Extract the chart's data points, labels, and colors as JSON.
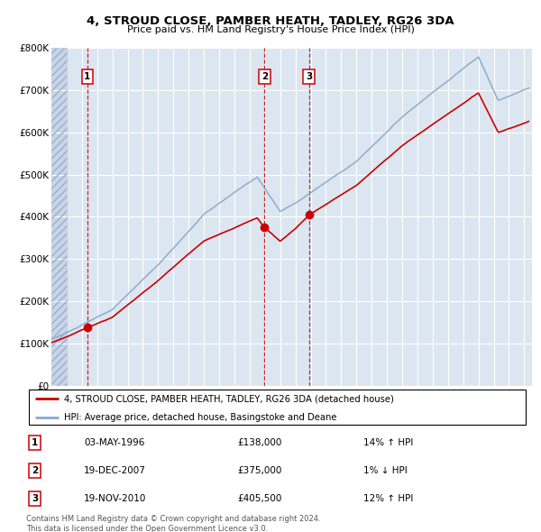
{
  "title1": "4, STROUD CLOSE, PAMBER HEATH, TADLEY, RG26 3DA",
  "title2": "Price paid vs. HM Land Registry's House Price Index (HPI)",
  "legend_line1": "4, STROUD CLOSE, PAMBER HEATH, TADLEY, RG26 3DA (detached house)",
  "legend_line2": "HPI: Average price, detached house, Basingstoke and Deane",
  "sale_color": "#cc0000",
  "hpi_color": "#88aacc",
  "background_color": "#dce6f1",
  "sale_dates": [
    1996.35,
    2007.97,
    2010.89
  ],
  "sale_prices": [
    138000,
    375000,
    405500
  ],
  "sale_labels": [
    "1",
    "2",
    "3"
  ],
  "sale_info": [
    {
      "label": "1",
      "date": "03-MAY-1996",
      "price": "£138,000",
      "hpi": "14% ↑ HPI"
    },
    {
      "label": "2",
      "date": "19-DEC-2007",
      "price": "£375,000",
      "hpi": "1% ↓ HPI"
    },
    {
      "label": "3",
      "date": "19-NOV-2010",
      "price": "£405,500",
      "hpi": "12% ↑ HPI"
    }
  ],
  "xmin": 1994.0,
  "xmax": 2025.5,
  "ymin": 0,
  "ymax": 800000,
  "yticks": [
    0,
    100000,
    200000,
    300000,
    400000,
    500000,
    600000,
    700000,
    800000
  ],
  "ytick_labels": [
    "£0",
    "£100K",
    "£200K",
    "£300K",
    "£400K",
    "£500K",
    "£600K",
    "£700K",
    "£800K"
  ],
  "footer": "Contains HM Land Registry data © Crown copyright and database right 2024.\nThis data is licensed under the Open Government Licence v3.0."
}
